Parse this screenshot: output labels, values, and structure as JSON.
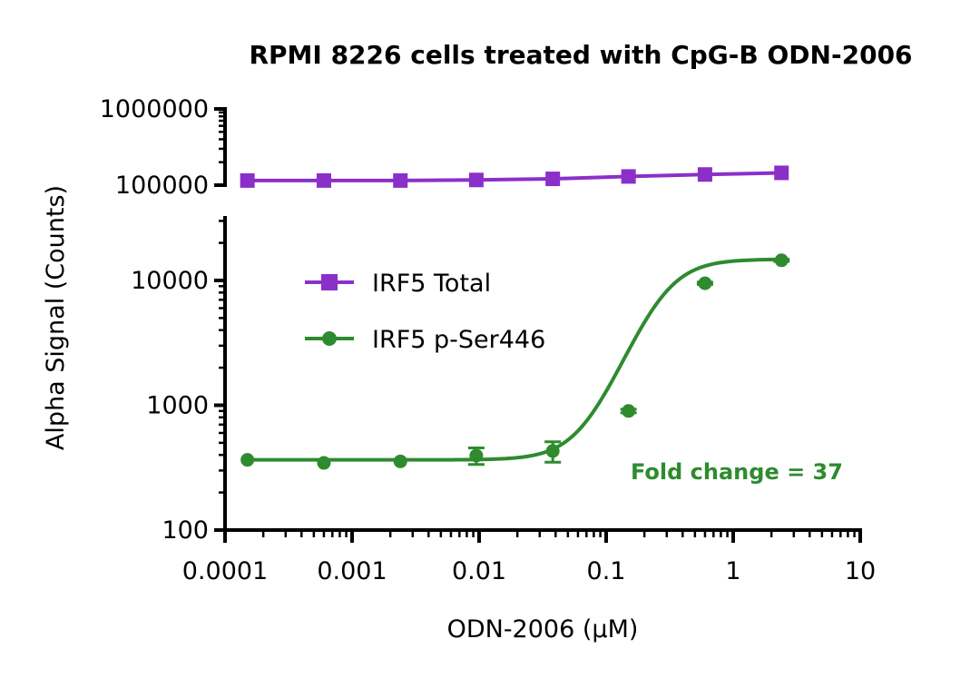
{
  "chart_data": {
    "type": "line",
    "title": "RPMI 8226 cells treated with CpG-B ODN-2006",
    "xlabel": "ODN-2006 (µM)",
    "ylabel": "Alpha Signal (Counts)",
    "x_scale": "log",
    "y_scale": "log",
    "xlim": [
      0.0001,
      10
    ],
    "x_ticks": [
      "0.0001",
      "0.001",
      "0.01",
      "0.1",
      "1",
      "10"
    ],
    "y_axis_segments": [
      {
        "ylim": [
          100000,
          1000000
        ],
        "ticks": [
          "100000",
          "1000000"
        ]
      },
      {
        "ylim": [
          100,
          30000
        ],
        "ticks": [
          "100",
          "1000",
          "10000"
        ]
      }
    ],
    "legend_position": "upper-left",
    "grid": false,
    "annotation": "Fold change = 37",
    "annotation_color": "#2e8b2e",
    "series": [
      {
        "name": "IRF5 Total",
        "color": "#8b2fc9",
        "marker": "square",
        "x": [
          0.00015,
          0.0006,
          0.0024,
          0.0095,
          0.038,
          0.15,
          0.6,
          2.4
        ],
        "y": [
          115000,
          115000,
          115000,
          117000,
          121000,
          130000,
          138000,
          145000
        ]
      },
      {
        "name": "IRF5 p-Ser446",
        "color": "#2e8b2e",
        "marker": "circle",
        "x": [
          0.00015,
          0.0006,
          0.0024,
          0.0095,
          0.038,
          0.15,
          0.6,
          2.4
        ],
        "y": [
          365,
          345,
          355,
          395,
          430,
          900,
          9500,
          14500
        ],
        "error": [
          10,
          10,
          10,
          60,
          80,
          30,
          200,
          300
        ],
        "fit": {
          "bottom": 365,
          "top": 14800,
          "ec50": 0.28,
          "hill": 2.6
        }
      }
    ]
  }
}
